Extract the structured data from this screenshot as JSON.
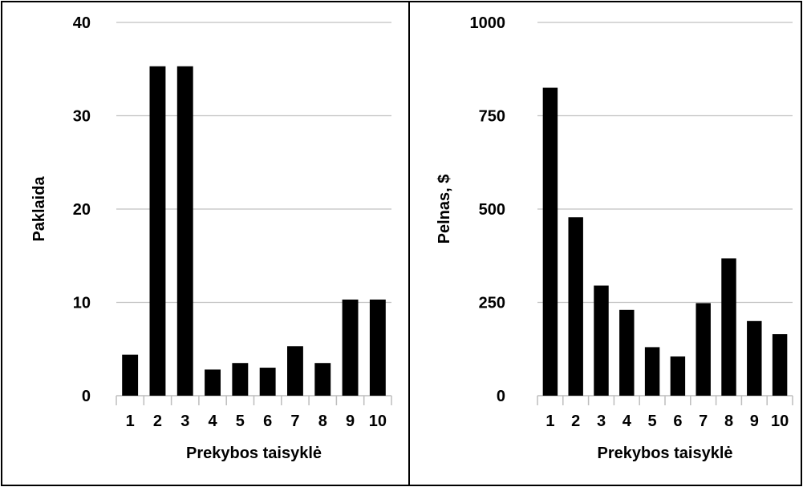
{
  "chart_data": [
    {
      "type": "bar",
      "categories": [
        "1",
        "2",
        "3",
        "4",
        "5",
        "6",
        "7",
        "8",
        "9",
        "10"
      ],
      "values": [
        4.4,
        35.3,
        35.3,
        2.8,
        3.5,
        3.0,
        5.3,
        3.5,
        10.3,
        10.3
      ],
      "xlabel": "Prekybos taisyklė",
      "ylabel": "Paklaida",
      "ylim": [
        0,
        40
      ],
      "yticks": [
        "0",
        "10",
        "20",
        "30",
        "40"
      ],
      "ytick_values": [
        0,
        10,
        20,
        30,
        40
      ],
      "grid": true,
      "bar_color": "#000000"
    },
    {
      "type": "bar",
      "categories": [
        "1",
        "2",
        "3",
        "4",
        "5",
        "6",
        "7",
        "8",
        "9",
        "10"
      ],
      "values": [
        825,
        478,
        295,
        230,
        130,
        105,
        248,
        368,
        200,
        165
      ],
      "xlabel": "Prekybos taisyklė",
      "ylabel": "Pelnas, $",
      "ylim": [
        0,
        1000
      ],
      "yticks": [
        "0",
        "250",
        "500",
        "750",
        "1000"
      ],
      "ytick_values": [
        0,
        250,
        500,
        750,
        1000
      ],
      "grid": true,
      "bar_color": "#000000"
    }
  ]
}
